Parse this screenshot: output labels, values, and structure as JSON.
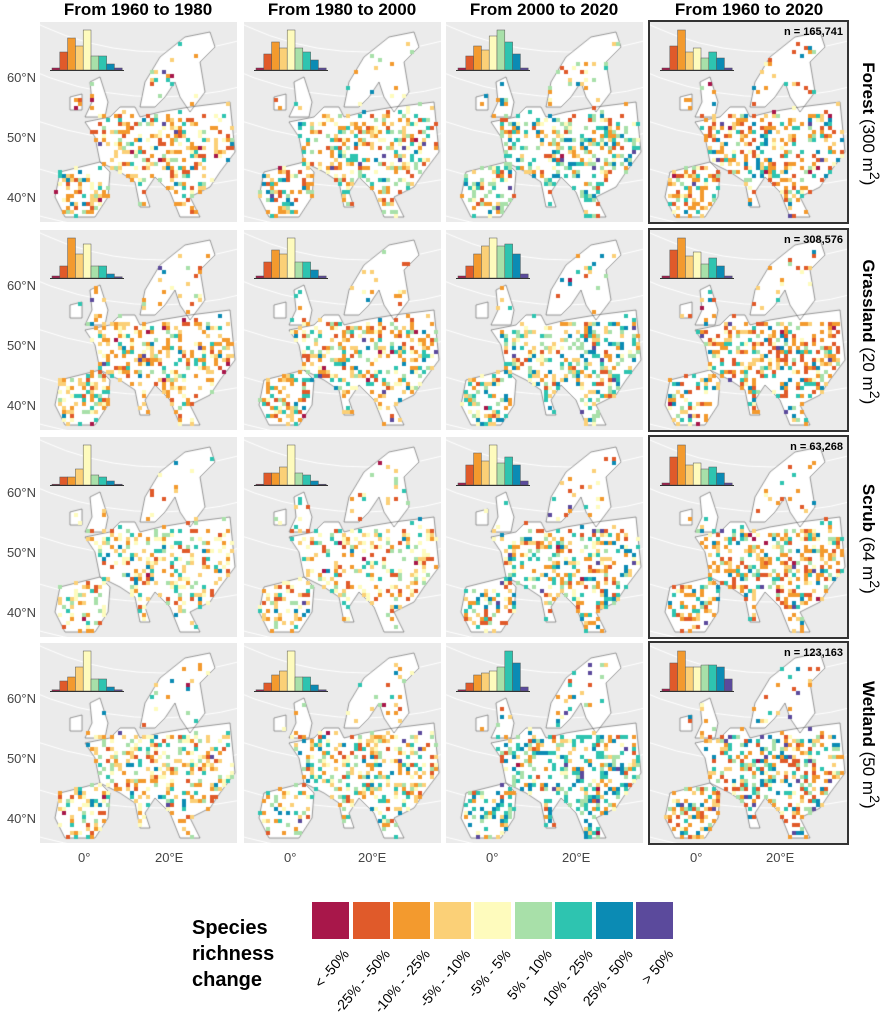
{
  "columns": [
    "From 1960 to 1980",
    "From 1980 to 2000",
    "From 2000 to 2020",
    "From 1960 to 2020"
  ],
  "rows": [
    {
      "name": "Forest",
      "area": "(300 m",
      "sup": "2",
      "close": ")",
      "n": "n = 165,741"
    },
    {
      "name": "Grassland",
      "area": "(20 m",
      "sup": "2",
      "close": ")",
      "n": "n = 308,576"
    },
    {
      "name": "Scrub",
      "area": "(64 m",
      "sup": "2",
      "close": ")",
      "n": "n = 63,268"
    },
    {
      "name": "Wetland",
      "area": "(50 m",
      "sup": "2",
      "close": ")",
      "n": "n = 123,163"
    }
  ],
  "y_ticks": [
    "60°N",
    "50°N",
    "40°N"
  ],
  "x_ticks": [
    "0°",
    "20°E"
  ],
  "legend": {
    "title": [
      "Species",
      "richness",
      "change"
    ],
    "classes": [
      "< -50%",
      "-25% - -50%",
      "-10% - -25%",
      "-5% - -10%",
      "-5% - 5%",
      "5% - 10%",
      "10% - 25%",
      "25% - 50%",
      "> 50%"
    ],
    "colors": [
      "#a8174a",
      "#e05a2a",
      "#f39a2e",
      "#fbd077",
      "#fefbbd",
      "#a8e0a9",
      "#2ec4b0",
      "#0b8bb4",
      "#5b4a9c"
    ]
  },
  "chart_data": {
    "type": "map-grid with histograms",
    "histograms_relative": [
      [
        [
          0.05,
          0.45,
          0.8,
          0.6,
          1,
          0.35,
          0.35,
          0.15,
          0.05
        ],
        [
          0.05,
          0.4,
          0.7,
          0.55,
          1,
          0.55,
          0.45,
          0.25,
          0.05
        ],
        [
          0.05,
          0.35,
          0.6,
          0.5,
          0.85,
          1,
          0.7,
          0.4,
          0.05
        ],
        [
          0.05,
          0.6,
          1,
          0.45,
          0.55,
          0.3,
          0.45,
          0.3,
          0.05
        ]
      ],
      [
        [
          0.05,
          0.3,
          1,
          0.6,
          0.85,
          0.3,
          0.3,
          0.1,
          0.03
        ],
        [
          0.05,
          0.4,
          0.7,
          0.6,
          1,
          0.4,
          0.4,
          0.2,
          0.05
        ],
        [
          0.05,
          0.3,
          0.6,
          0.8,
          1,
          0.8,
          0.85,
          0.6,
          0.1
        ],
        [
          0.05,
          0.7,
          1,
          0.55,
          0.65,
          0.35,
          0.5,
          0.3,
          0.05
        ]
      ],
      [
        [
          0.02,
          0.2,
          0.2,
          0.4,
          1,
          0.25,
          0.2,
          0.1,
          0.02
        ],
        [
          0.02,
          0.3,
          0.3,
          0.45,
          1,
          0.3,
          0.25,
          0.1,
          0.02
        ],
        [
          0.05,
          0.5,
          0.8,
          0.6,
          1,
          0.55,
          0.7,
          0.5,
          0.1
        ],
        [
          0.05,
          0.7,
          1,
          0.5,
          0.55,
          0.4,
          0.45,
          0.3,
          0.05
        ]
      ],
      [
        [
          0.03,
          0.25,
          0.35,
          0.6,
          1,
          0.3,
          0.3,
          0.1,
          0.03
        ],
        [
          0.03,
          0.2,
          0.4,
          0.5,
          1,
          0.35,
          0.35,
          0.15,
          0.03
        ],
        [
          0.03,
          0.2,
          0.4,
          0.45,
          0.5,
          0.6,
          1,
          0.7,
          0.1
        ],
        [
          0.05,
          0.7,
          1,
          0.6,
          0.6,
          0.65,
          0.65,
          0.6,
          0.3
        ]
      ]
    ]
  }
}
